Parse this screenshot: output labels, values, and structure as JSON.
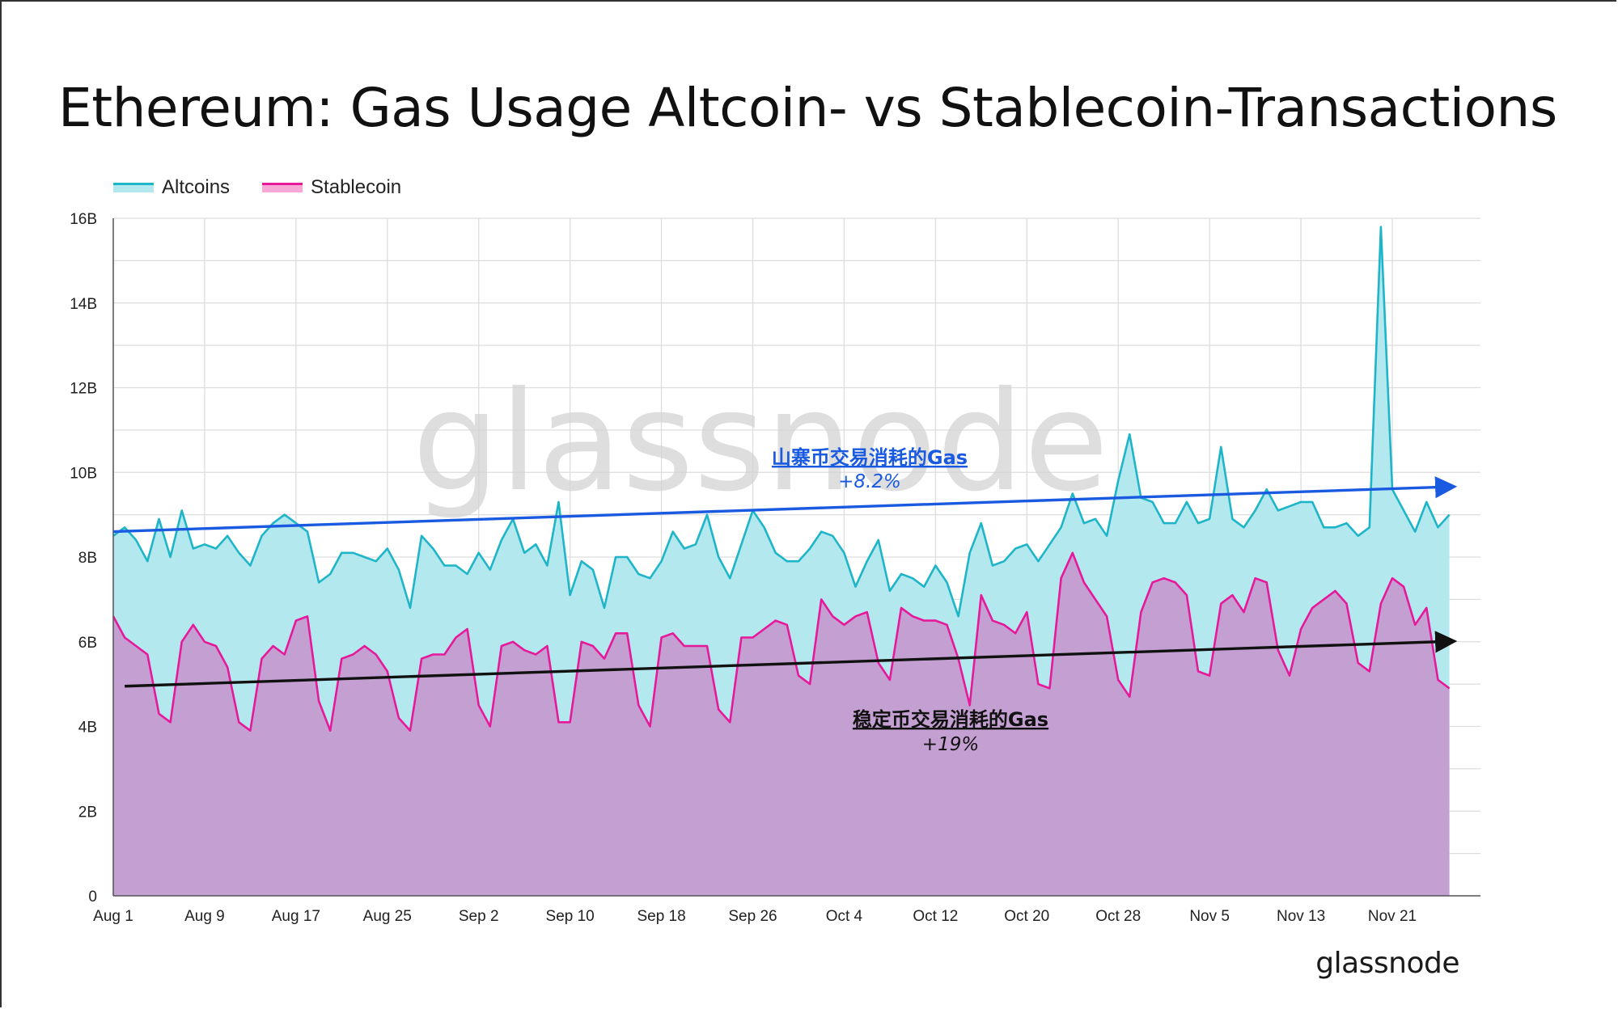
{
  "title": "Ethereum: Gas Usage Altcoin- vs Stablecoin-Transactions",
  "watermark": "glassnode",
  "logo": "glassnode",
  "legend": [
    {
      "label": "Altcoins",
      "line": "#1fb5c8",
      "fill": "#b3e8ef"
    },
    {
      "label": "Stablecoin",
      "line": "#e6199b",
      "fill": "#f7a8d6"
    }
  ],
  "annotations": {
    "altcoin": {
      "title": "山寨币交易消耗的Gas",
      "subtitle": "+8.2%",
      "color": "#1a5ae0"
    },
    "stablecoin": {
      "title": "稳定币交易消耗的Gas",
      "subtitle": "+19%",
      "color": "#111111"
    }
  },
  "chart_data": {
    "type": "area",
    "x_start": "Aug 1",
    "x_tick_labels": [
      "Aug 1",
      "Aug 9",
      "Aug 17",
      "Aug 25",
      "Sep 2",
      "Sep 10",
      "Sep 18",
      "Sep 26",
      "Oct 4",
      "Oct 12",
      "Oct 20",
      "Oct 28",
      "Nov 5",
      "Nov 13",
      "Nov 21"
    ],
    "y_tick_labels": [
      "0",
      "2B",
      "4B",
      "6B",
      "8B",
      "10B",
      "12B",
      "14B",
      "16B"
    ],
    "ylim": [
      0,
      16
    ],
    "grid": true,
    "legend_position": "top-left",
    "series": [
      {
        "name": "Altcoins",
        "color": "#1fb5c8",
        "fill": "#b3e8ef",
        "values": [
          8.5,
          8.7,
          8.4,
          7.9,
          8.9,
          8.0,
          9.1,
          8.2,
          8.3,
          8.2,
          8.5,
          8.1,
          7.8,
          8.5,
          8.8,
          9.0,
          8.8,
          8.6,
          7.4,
          7.6,
          8.1,
          8.1,
          8.0,
          7.9,
          8.2,
          7.7,
          6.8,
          8.5,
          8.2,
          7.8,
          7.8,
          7.6,
          8.1,
          7.7,
          8.4,
          8.9,
          8.1,
          8.3,
          7.8,
          9.3,
          7.1,
          7.9,
          7.7,
          6.8,
          8.0,
          8.0,
          7.6,
          7.5,
          7.9,
          8.6,
          8.2,
          8.3,
          9.0,
          8.0,
          7.5,
          8.3,
          9.1,
          8.7,
          8.1,
          7.9,
          7.9,
          8.2,
          8.6,
          8.5,
          8.1,
          7.3,
          7.9,
          8.4,
          7.2,
          7.6,
          7.5,
          7.3,
          7.8,
          7.4,
          6.6,
          8.1,
          8.8,
          7.8,
          7.9,
          8.2,
          8.3,
          7.9,
          8.3,
          8.7,
          9.5,
          8.8,
          8.9,
          8.5,
          9.8,
          10.9,
          9.4,
          9.3,
          8.8,
          8.8,
          9.3,
          8.8,
          8.9,
          10.6,
          8.9,
          8.7,
          9.1,
          9.6,
          9.1,
          9.2,
          9.3,
          9.3,
          8.7,
          8.7,
          8.8,
          8.5,
          8.7,
          15.8,
          9.6,
          9.1,
          8.6,
          9.3,
          8.7,
          9.0
        ]
      },
      {
        "name": "Stablecoin",
        "color": "#e6199b",
        "fill": "#c49fd2",
        "values": [
          6.6,
          6.1,
          5.9,
          5.7,
          4.3,
          4.1,
          6.0,
          6.4,
          6.0,
          5.9,
          5.4,
          4.1,
          3.9,
          5.6,
          5.9,
          5.7,
          6.5,
          6.6,
          4.6,
          3.9,
          5.6,
          5.7,
          5.9,
          5.7,
          5.3,
          4.2,
          3.9,
          5.6,
          5.7,
          5.7,
          6.1,
          6.3,
          4.5,
          4.0,
          5.9,
          6.0,
          5.8,
          5.7,
          5.9,
          4.1,
          4.1,
          6.0,
          5.9,
          5.6,
          6.2,
          6.2,
          4.5,
          4.0,
          6.1,
          6.2,
          5.9,
          5.9,
          5.9,
          4.4,
          4.1,
          6.1,
          6.1,
          6.3,
          6.5,
          6.4,
          5.2,
          5.0,
          7.0,
          6.6,
          6.4,
          6.6,
          6.7,
          5.5,
          5.1,
          6.8,
          6.6,
          6.5,
          6.5,
          6.4,
          5.6,
          4.5,
          7.1,
          6.5,
          6.4,
          6.2,
          6.7,
          5.0,
          4.9,
          7.5,
          8.1,
          7.4,
          7.0,
          6.6,
          5.1,
          4.7,
          6.7,
          7.4,
          7.5,
          7.4,
          7.1,
          5.3,
          5.2,
          6.9,
          7.1,
          6.7,
          7.5,
          7.4,
          5.8,
          5.2,
          6.3,
          6.8,
          7.0,
          7.2,
          6.9,
          5.5,
          5.3,
          6.9,
          7.5,
          7.3,
          6.4,
          6.8,
          5.1,
          4.9
        ]
      }
    ],
    "trend_lines": [
      {
        "series": "Altcoins",
        "from": [
          0,
          8.6
        ],
        "to": [
          116,
          9.65
        ],
        "color": "#1a5ae0"
      },
      {
        "series": "Stablecoin",
        "from": [
          1,
          4.95
        ],
        "to": [
          116,
          6.0
        ],
        "color": "#111111"
      }
    ]
  }
}
